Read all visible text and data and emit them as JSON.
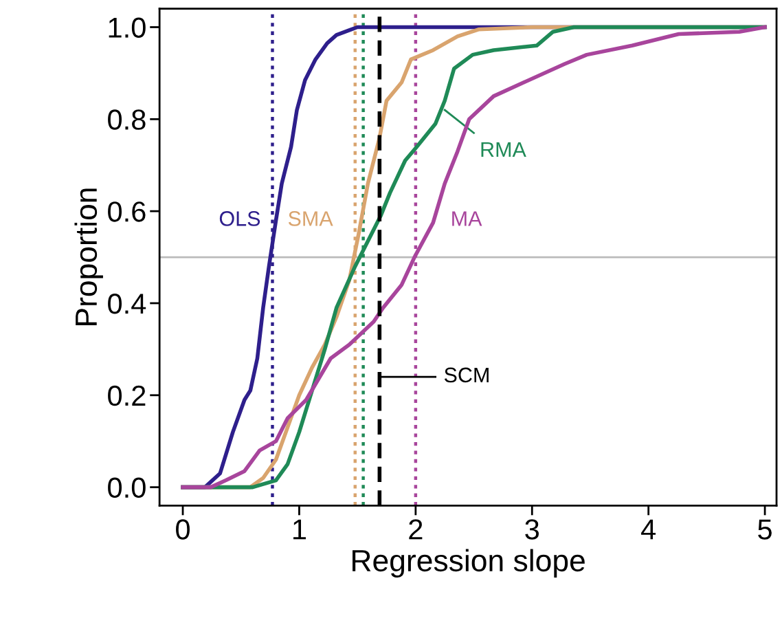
{
  "chart_data": {
    "type": "line",
    "xlabel": "Regression slope",
    "ylabel": "Proportion",
    "xlim": [
      -0.2,
      5.1
    ],
    "ylim": [
      -0.04,
      1.04
    ],
    "xticks": [
      0,
      1,
      2,
      3,
      4,
      5
    ],
    "yticks": [
      {
        "value": 0,
        "label": "0.0"
      },
      {
        "value": 0.2,
        "label": "0.2"
      },
      {
        "value": 0.4,
        "label": "0.4"
      },
      {
        "value": 0.6,
        "label": "0.6"
      },
      {
        "value": 0.8,
        "label": "0.8"
      },
      {
        "value": 1,
        "label": "1.0"
      }
    ],
    "grid": false,
    "legend": false,
    "marker": "none",
    "line_style": "solid",
    "series": [
      {
        "name": "OLS",
        "color": "#2e1f8c",
        "x": [
          0,
          0.19,
          0.32,
          0.43,
          0.53,
          0.58,
          0.64,
          0.69,
          0.74,
          0.8,
          0.85,
          0.93,
          0.98,
          1.05,
          1.14,
          1.24,
          1.32,
          1.5,
          5
        ],
        "values": [
          0,
          0,
          0.03,
          0.12,
          0.19,
          0.21,
          0.28,
          0.39,
          0.48,
          0.58,
          0.66,
          0.74,
          0.82,
          0.885,
          0.93,
          0.965,
          0.983,
          1,
          1
        ]
      },
      {
        "name": "SMA",
        "color": "#d9a46e",
        "x": [
          0,
          0.58,
          0.69,
          0.8,
          0.9,
          1.0,
          1.11,
          1.22,
          1.32,
          1.43,
          1.51,
          1.59,
          1.69,
          1.75,
          1.88,
          1.96,
          2.15,
          2.36,
          2.54,
          3.0,
          5
        ],
        "values": [
          0,
          0,
          0.02,
          0.06,
          0.13,
          0.2,
          0.26,
          0.31,
          0.37,
          0.45,
          0.55,
          0.66,
          0.76,
          0.84,
          0.88,
          0.93,
          0.95,
          0.98,
          0.995,
          1,
          1
        ]
      },
      {
        "name": "RMA",
        "color": "#1f8a57",
        "x": [
          0,
          0.6,
          0.8,
          0.9,
          1.0,
          1.11,
          1.22,
          1.32,
          1.48,
          1.7,
          1.78,
          1.91,
          2.01,
          2.17,
          2.25,
          2.33,
          2.49,
          2.67,
          3.04,
          3.18,
          3.36,
          5
        ],
        "values": [
          0,
          0,
          0.015,
          0.05,
          0.12,
          0.21,
          0.3,
          0.39,
          0.48,
          0.59,
          0.64,
          0.71,
          0.74,
          0.79,
          0.84,
          0.91,
          0.94,
          0.95,
          0.96,
          0.99,
          1,
          1
        ]
      },
      {
        "name": "MA",
        "color": "#a8459c",
        "x": [
          0,
          0.24,
          0.37,
          0.53,
          0.66,
          0.8,
          0.9,
          1.06,
          1.27,
          1.43,
          1.64,
          1.72,
          1.88,
          1.99,
          2.15,
          2.25,
          2.36,
          2.46,
          2.67,
          2.93,
          3.28,
          3.47,
          3.86,
          4.26,
          4.78,
          5.0
        ],
        "values": [
          0,
          0,
          0.015,
          0.035,
          0.08,
          0.1,
          0.15,
          0.19,
          0.28,
          0.31,
          0.36,
          0.39,
          0.44,
          0.5,
          0.575,
          0.66,
          0.73,
          0.8,
          0.85,
          0.88,
          0.92,
          0.94,
          0.96,
          0.985,
          0.99,
          1
        ]
      }
    ],
    "ref_lines": [
      {
        "axis": "y",
        "value": 0.5,
        "color": "#bbbbbb",
        "line_style": "solid"
      },
      {
        "axis": "x",
        "value": 0.77,
        "color": "#2e1f8c",
        "line_style": "dotted"
      },
      {
        "axis": "x",
        "value": 1.48,
        "color": "#d9a46e",
        "line_style": "dotted"
      },
      {
        "axis": "x",
        "value": 1.55,
        "color": "#1f8a57",
        "line_style": "dotted"
      },
      {
        "axis": "x",
        "value": 1.69,
        "color": "#000000",
        "line_style": "dashed",
        "label": "SCM"
      },
      {
        "axis": "x",
        "value": 2.0,
        "color": "#a8459c",
        "line_style": "dotted"
      }
    ]
  }
}
